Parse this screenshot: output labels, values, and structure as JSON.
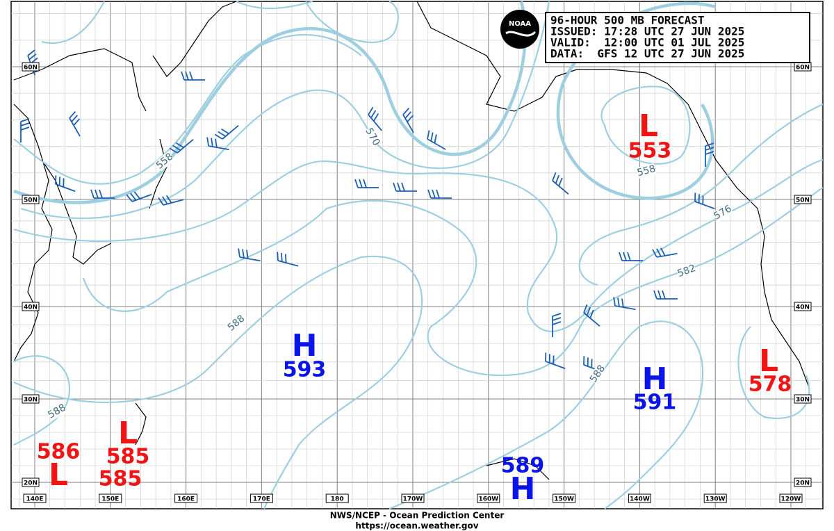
{
  "header": {
    "lines": [
      "96-HOUR 500 MB FORECAST",
      "ISSUED: 17:28 UTC 27 JUN 2025",
      "VALID:  12:00 UTC 01 JUL 2025",
      "DATA:  GFS 12 UTC 27 JUN 2025"
    ]
  },
  "logo": "NOAA",
  "footer": {
    "agency": "NWS/NCEP - Ocean Prediction Center",
    "url": "https://ocean.weather.gov"
  },
  "longitude_labels": [
    "140E",
    "150E",
    "160E",
    "170E",
    "180",
    "170W",
    "160W",
    "150W",
    "140W",
    "130W",
    "120W"
  ],
  "latitude_labels": [
    "60N",
    "50N",
    "40N",
    "30N",
    "20N"
  ],
  "pressure_centers": [
    {
      "symbol": "L",
      "value": "553"
    },
    {
      "symbol": "L",
      "value": "578"
    },
    {
      "symbol": "H",
      "value": "593"
    },
    {
      "symbol": "H",
      "value": "591"
    },
    {
      "symbol": "H",
      "value": "589"
    },
    {
      "symbol": "L",
      "value": "586"
    },
    {
      "symbol": "L",
      "value": "585"
    },
    {
      "value": "585"
    }
  ],
  "contour_labels": [
    "570",
    "558",
    "558",
    "576",
    "582",
    "588",
    "588",
    "588"
  ]
}
